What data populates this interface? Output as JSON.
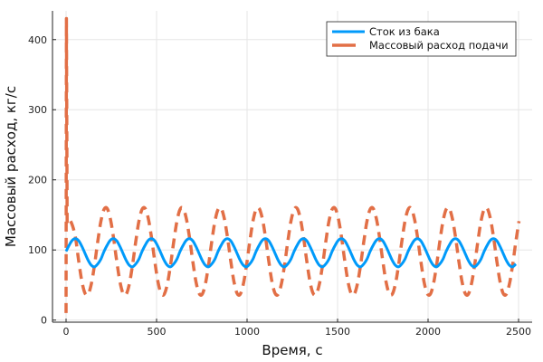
{
  "chart_data": {
    "type": "line",
    "title": "",
    "xlabel": "Время, с",
    "ylabel": "Массовый расход, кг/с",
    "xlim": [
      -75,
      2575
    ],
    "ylim": [
      -3,
      441
    ],
    "xticks": [
      0,
      500,
      1000,
      1500,
      2000,
      2500
    ],
    "yticks": [
      0,
      100,
      200,
      300,
      400
    ],
    "grid": true,
    "legend_position": "top-right",
    "series": [
      {
        "name": "Сток из бака",
        "color": "#009AFA",
        "style": "solid",
        "t0": 0,
        "dt": 17.5,
        "values": [
          98,
          107,
          114,
          116,
          113,
          105,
          95,
          85,
          78,
          76,
          80,
          87,
          98,
          107,
          114,
          116,
          113,
          105,
          95,
          85,
          78,
          76,
          80,
          87,
          98,
          107,
          114,
          116,
          113,
          105,
          95,
          85,
          78,
          76,
          80,
          87,
          98,
          107,
          114,
          116,
          113,
          105,
          95,
          85,
          78,
          76,
          80,
          87,
          98,
          107,
          114,
          116,
          113,
          105,
          95,
          85,
          78,
          76,
          80,
          87,
          98,
          107,
          114,
          116,
          113,
          105,
          95,
          85,
          78,
          76,
          80,
          87,
          98,
          107,
          114,
          116,
          113,
          105,
          95,
          85,
          78,
          76,
          80,
          87,
          98,
          107,
          114,
          116,
          113,
          105,
          95,
          85,
          78,
          76,
          80,
          87,
          98,
          107,
          114,
          116,
          113,
          105,
          95,
          85,
          78,
          76,
          80,
          87,
          98,
          107,
          114,
          116,
          113,
          105,
          95,
          85,
          78,
          76,
          80,
          87,
          98,
          107,
          114,
          116,
          113,
          105,
          95,
          85,
          78,
          76,
          80,
          87,
          98,
          107,
          114,
          116,
          113,
          105,
          95,
          85,
          78,
          76,
          80
        ]
      },
      {
        "name": "Массовый расход подачи",
        "color": "#E26F46",
        "style": "dashed",
        "transient": [
          [
            0,
            10
          ],
          [
            2,
            430
          ],
          [
            6,
            140
          ]
        ],
        "t0": 17.5,
        "dt": 17.5,
        "values": [
          145,
          135,
          117,
          84,
          55,
          38,
          37,
          52,
          79,
          112,
          141,
          158,
          159,
          144,
          117,
          84,
          55,
          38,
          37,
          52,
          79,
          112,
          141,
          158,
          159,
          144,
          117,
          84,
          55,
          38,
          37,
          52,
          79,
          112,
          141,
          158,
          159,
          144,
          117,
          84,
          55,
          38,
          37,
          52,
          79,
          112,
          141,
          158,
          159,
          144,
          117,
          84,
          55,
          38,
          37,
          52,
          79,
          112,
          141,
          158,
          159,
          144,
          117,
          84,
          55,
          38,
          37,
          52,
          79,
          112,
          141,
          158,
          159,
          144,
          117,
          84,
          55,
          38,
          37,
          52,
          79,
          112,
          141,
          158,
          159,
          144,
          117,
          84,
          55,
          38,
          37,
          52,
          79,
          112,
          141,
          158,
          159,
          144,
          117,
          84,
          55,
          38,
          37,
          52,
          79,
          112,
          141,
          158,
          159,
          144,
          117,
          84,
          55,
          38,
          37,
          52,
          79,
          112,
          141,
          158,
          159,
          144,
          117,
          84,
          55,
          38,
          37,
          52,
          79,
          112,
          141,
          158,
          159,
          144,
          117,
          84,
          55,
          38,
          37,
          52,
          79,
          112,
          141
        ]
      }
    ]
  }
}
